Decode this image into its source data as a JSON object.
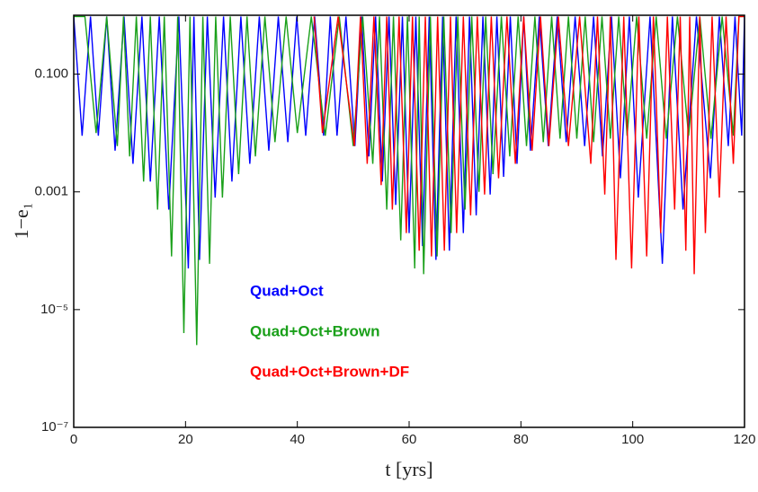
{
  "chart_data": {
    "type": "line",
    "log_y": true,
    "xlabel": "t [yrs]",
    "ylabel": "1−e₁",
    "xlim": [
      0,
      120
    ],
    "xticks": [
      0,
      20,
      40,
      60,
      80,
      100,
      120
    ],
    "ylim": [
      1e-07,
      1
    ],
    "yticks": [
      {
        "value": 1e-07,
        "label": "10⁻⁷"
      },
      {
        "value": 1e-05,
        "label": "10⁻⁵"
      },
      0.001,
      {
        "value": 0.1,
        "label": "0.100"
      }
    ],
    "series": [
      {
        "name": "Quad+Oct",
        "color": "#0000ff",
        "x": [
          0,
          1.5,
          3,
          4.4,
          5.9,
          7.4,
          9,
          10.6,
          12.2,
          13.7,
          15.3,
          17.0,
          18.8,
          20.5,
          21.5,
          22.5,
          23.9,
          25.3,
          26.8,
          28.3,
          29.9,
          31.5,
          33.2,
          34.9,
          36.6,
          38.3,
          39.9,
          41.5,
          43.1,
          44.7,
          45.9,
          47.1,
          48.7,
          50.3,
          51.5,
          52.8,
          54,
          55.2,
          56.4,
          57.6,
          58.8,
          60.0,
          61.2,
          62.4,
          63.6,
          64.8,
          66,
          67.2,
          68.4,
          69.7,
          70.8,
          72.0,
          73.2,
          74.5,
          75.7,
          76.9,
          78.1,
          79.3,
          80.5,
          81.7,
          83.3,
          84.9,
          86.5,
          88.1,
          89.7,
          91.4,
          93,
          94.6,
          96.2,
          97.8,
          99.4,
          101.0,
          103.1,
          105.3,
          107.1,
          109.0,
          111.4,
          113.9,
          115.5,
          117.1,
          118.3,
          119.5,
          120
        ],
        "values": [
          0.95,
          0.009,
          0.95,
          0.009,
          0.95,
          0.005,
          0.95,
          0.003,
          0.95,
          0.0015,
          0.95,
          0.0005,
          0.95,
          5e-05,
          0.95,
          7e-05,
          0.95,
          0.0008,
          0.95,
          0.0015,
          0.95,
          0.003,
          0.95,
          0.005,
          0.95,
          0.007,
          0.95,
          0.009,
          0.95,
          0.009,
          0.95,
          0.009,
          0.95,
          0.006,
          0.95,
          0.004,
          0.95,
          0.0015,
          0.95,
          0.0006,
          0.95,
          0.0002,
          0.95,
          0.00012,
          0.95,
          7e-05,
          0.95,
          0.0001,
          0.95,
          0.0002,
          0.95,
          0.0004,
          0.95,
          0.0009,
          0.95,
          0.0018,
          0.95,
          0.003,
          0.95,
          0.005,
          0.95,
          0.006,
          0.95,
          0.007,
          0.95,
          0.006,
          0.95,
          0.004,
          0.95,
          0.0017,
          0.95,
          0.0008,
          0.95,
          6e-05,
          0.95,
          0.0005,
          0.95,
          0.0017,
          0.95,
          0.006,
          0.95,
          0.009,
          0.95
        ]
      },
      {
        "name": "Quad+Oct+Brown",
        "color": "#1aa01a",
        "x": [
          0,
          2,
          4.0,
          5.9,
          7.8,
          8.9,
          10.0,
          11.2,
          12.5,
          13.7,
          15.0,
          16.2,
          17.5,
          18.6,
          19.7,
          20.8,
          22.0,
          23.1,
          24.3,
          25.4,
          26.6,
          28,
          29.5,
          31,
          32.5,
          34.2,
          36.0,
          38,
          40.0,
          42.5,
          45.0,
          47.5,
          50.0,
          51.7,
          53.5,
          54.7,
          56.0,
          57.2,
          58.5,
          59.7,
          61.0,
          61.8,
          62.6,
          63.8,
          65.0,
          66.2,
          67.5,
          68.7,
          70.0,
          71.2,
          72.5,
          73.7,
          75.0,
          76.5,
          78.0,
          79.5,
          81.0,
          82.5,
          84.0,
          85.5,
          87.0,
          88.5,
          90.0,
          91.5,
          93.0,
          94.5,
          96.0,
          97.5,
          99.0,
          100.7,
          102.5,
          104.2,
          106.0,
          108,
          110.0,
          112,
          114.0,
          116,
          118.0,
          119,
          120
        ],
        "values": [
          0.95,
          0.95,
          0.01,
          0.95,
          0.006,
          0.95,
          0.004,
          0.95,
          0.0015,
          0.95,
          0.0005,
          0.95,
          8e-05,
          0.95,
          4e-06,
          0.95,
          2.5e-06,
          0.95,
          6e-05,
          0.95,
          0.0008,
          0.95,
          0.002,
          0.95,
          0.004,
          0.95,
          0.007,
          0.95,
          0.01,
          0.95,
          0.009,
          0.95,
          0.006,
          0.95,
          0.003,
          0.95,
          0.0005,
          0.95,
          0.00015,
          0.95,
          5e-05,
          0.95,
          4e-05,
          0.95,
          8e-05,
          0.95,
          0.0002,
          0.95,
          0.0005,
          0.95,
          0.001,
          0.95,
          0.002,
          0.95,
          0.004,
          0.95,
          0.006,
          0.95,
          0.007,
          0.95,
          0.008,
          0.95,
          0.008,
          0.95,
          0.007,
          0.95,
          0.008,
          0.95,
          0.009,
          0.95,
          0.008,
          0.95,
          0.008,
          0.95,
          0.009,
          0.95,
          0.008,
          0.95,
          0.009,
          0.95,
          0.95
        ]
      },
      {
        "name": "Quad+Oct+Brown+DF",
        "color": "#ff0000",
        "x": [
          43,
          44.5,
          47.3,
          50.2,
          51.3,
          52.5,
          53.7,
          55.0,
          56,
          57.0,
          58.2,
          59.5,
          60.6,
          61.8,
          62.9,
          64.0,
          65.1,
          66.3,
          67.4,
          68.5,
          69.7,
          71.0,
          72.2,
          73.5,
          74.7,
          76.0,
          77.5,
          79.0,
          80.5,
          82.0,
          83.5,
          85.0,
          86.7,
          88.5,
          90.5,
          92.5,
          93.7,
          95.0,
          96,
          97.0,
          98.4,
          99.8,
          101.1,
          102.5,
          103.7,
          105.0,
          106.2,
          107.5,
          108.5,
          109.5,
          110.2,
          111.0,
          112,
          113.0,
          114.2,
          115.5,
          116.7,
          118.0,
          119,
          120
        ],
        "values": [
          0.95,
          0.01,
          0.95,
          0.006,
          0.95,
          0.003,
          0.95,
          0.0013,
          0.95,
          0.0005,
          0.95,
          0.0002,
          0.95,
          0.0001,
          0.95,
          8e-05,
          0.95,
          0.0001,
          0.95,
          0.0002,
          0.95,
          0.0004,
          0.95,
          0.0009,
          0.95,
          0.0017,
          0.95,
          0.003,
          0.95,
          0.005,
          0.95,
          0.006,
          0.95,
          0.006,
          0.95,
          0.003,
          0.95,
          0.0009,
          0.95,
          7e-05,
          0.95,
          5e-05,
          0.95,
          8e-05,
          0.95,
          0.0002,
          0.95,
          0.0005,
          0.95,
          0.0001,
          0.95,
          4e-05,
          0.95,
          0.0002,
          0.95,
          0.0008,
          0.95,
          0.003,
          0.95,
          0.95
        ]
      }
    ]
  }
}
